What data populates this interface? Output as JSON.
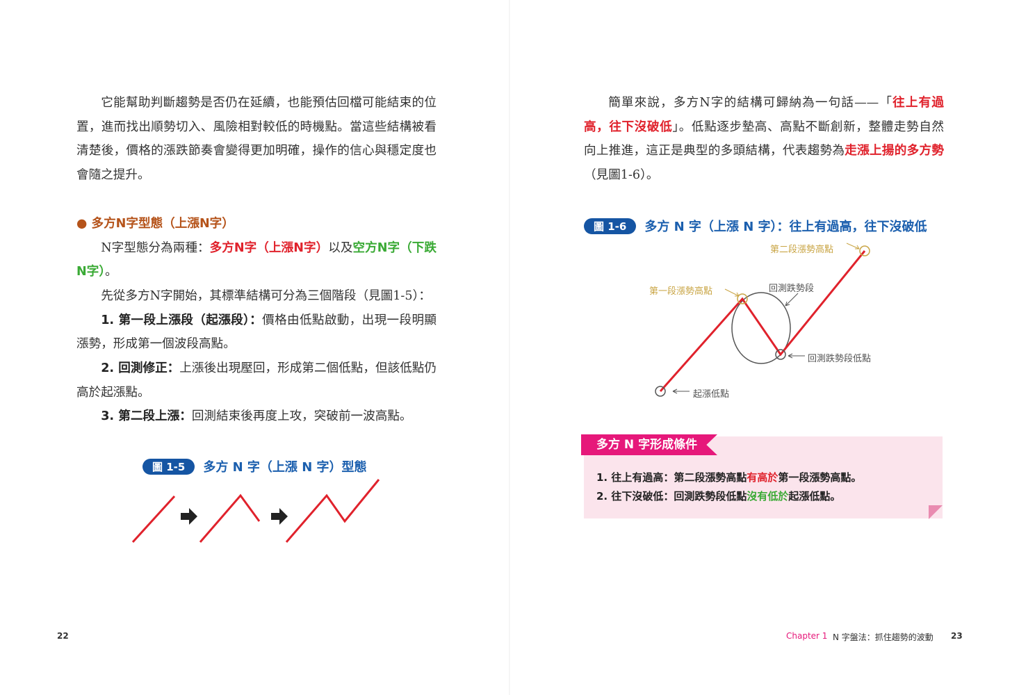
{
  "left_page": {
    "para1": "它能幫助判斷趨勢是否仍在延續，也能預估回檔可能結束的位置，進而找出順勢切入、風險相對較低的時機點。當這些結構被看清楚後，價格的漲跌節奏會變得更加明確，操作的信心與穩定度也會隨之提升。",
    "heading": "● 多方N字型態（上漲N字）",
    "para2": {
      "a": "N字型態分為兩種：",
      "b": "多方N字（上漲N字）",
      "c": "以及",
      "d": "空方N字（下跌N字）",
      "e": "。"
    },
    "para3": "先從多方N字開始，其標準結構可分為三個階段（見圖1-5）：",
    "items": [
      {
        "title": "1. 第一段上漲段（起漲段）：",
        "text": "價格由低點啟動，出現一段明顯漲勢，形成第一個波段高點。"
      },
      {
        "title": "2. 回測修正：",
        "text": "上漲後出現壓回，形成第二個低點，但該低點仍高於起漲點。"
      },
      {
        "title": "3. 第二段上漲：",
        "text": "回測結束後再度上攻，突破前一波高點。"
      }
    ],
    "figure": {
      "badge": "圖 1-5",
      "title": "多方 N 字（上漲 N 字）型態"
    },
    "page_number": "22"
  },
  "right_page": {
    "para1": {
      "a": "簡單來說，多方N字的結構可歸納為一句話——「",
      "b": "往上有過高，往下沒破低",
      "c": "」。低點逐步墊高、高點不斷創新，整體走勢自然向上推進，這正是典型的多頭結構，代表趨勢為",
      "d": "走漲上揚的多方勢",
      "e": "（見圖1-6）。"
    },
    "figure": {
      "badge": "圖 1-6",
      "title": "多方 N 字（上漲 N 字）：往上有過高，往下沒破低",
      "labels": {
        "high2": "第二段漲勢高點",
        "high1": "第一段漲勢高點",
        "retest": "回測跌勢段",
        "retest_low": "回測跌勢段低點",
        "start_low": "起漲低點"
      }
    },
    "box": {
      "title": "多方 N 字形成條件",
      "lines": [
        {
          "a": "1. 往上有過高：第二段漲勢高點",
          "b": "有高於",
          "c": "第一段漲勢高點。"
        },
        {
          "a": "2. 往下沒破低：回測跌勢段低點",
          "b": "沒有低於",
          "c": "起漲低點。"
        }
      ]
    },
    "footer": {
      "chapter": "Chapter 1",
      "title": "N 字盤法：抓住趨勢的波動",
      "page_number": "23"
    }
  },
  "colors": {
    "red": "#e0222c",
    "green": "#3aaa35",
    "blue": "#1b5fae",
    "magenta": "#e6187a",
    "pink_bg": "#fbe4ec",
    "heading": "#b5531a"
  }
}
